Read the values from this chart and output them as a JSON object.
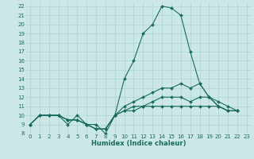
{
  "title": "",
  "xlabel": "Humidex (Indice chaleur)",
  "bg_color": "#cce8e6",
  "grid_color": "#aad4d0",
  "line_color": "#1a6b60",
  "xlim": [
    -0.5,
    23.5
  ],
  "ylim": [
    8,
    22.5
  ],
  "xticks": [
    0,
    1,
    2,
    3,
    4,
    5,
    6,
    7,
    8,
    9,
    10,
    11,
    12,
    13,
    14,
    15,
    16,
    17,
    18,
    19,
    20,
    21,
    22,
    23
  ],
  "yticks": [
    8,
    9,
    10,
    11,
    12,
    13,
    14,
    15,
    16,
    17,
    18,
    19,
    20,
    21,
    22
  ],
  "series": [
    [
      9,
      10,
      10,
      10,
      9,
      10,
      9,
      9,
      8,
      10,
      14,
      16,
      19,
      20,
      22,
      21.8,
      21,
      17,
      13.5,
      12,
      11,
      10.5,
      10.5
    ],
    [
      9,
      10,
      10,
      10,
      9.5,
      9.5,
      9,
      8.5,
      8.5,
      10,
      11,
      11.5,
      12,
      12.5,
      13,
      13,
      13.5,
      13,
      13.5,
      12,
      11,
      10.5,
      10.5
    ],
    [
      9,
      10,
      10,
      10,
      9.5,
      9.5,
      9,
      8.5,
      8.5,
      10,
      10.5,
      11,
      11,
      11.5,
      12,
      12,
      12,
      11.5,
      12,
      12,
      11.5,
      11,
      10.5
    ],
    [
      9,
      10,
      10,
      10,
      9.5,
      9.5,
      9,
      8.5,
      8.5,
      10,
      10.5,
      10.5,
      11,
      11,
      11,
      11,
      11,
      11,
      11,
      11,
      11,
      10.5,
      10.5
    ]
  ],
  "tick_fontsize": 5,
  "xlabel_fontsize": 6,
  "linewidth": 0.8,
  "markersize": 2.0
}
